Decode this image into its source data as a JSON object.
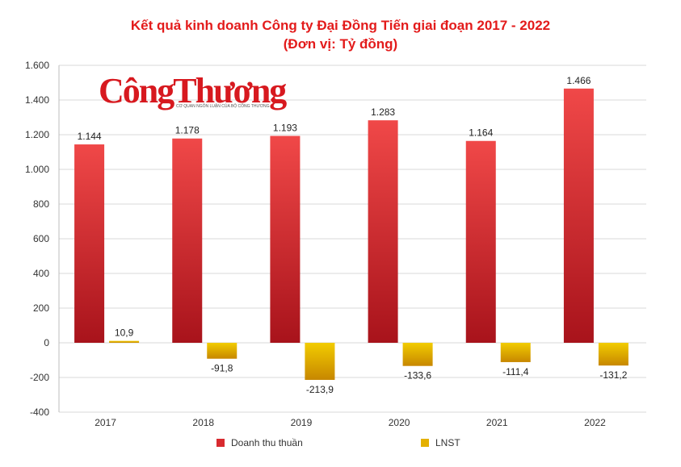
{
  "colors": {
    "revenue_top": "#f04848",
    "revenue_bottom": "#a8131b",
    "profit_top": "#f2cc00",
    "profit_bottom": "#c78700",
    "title": "#e31b1b",
    "grid": "#d8d8d8"
  },
  "watermark": {
    "logo_text": "CôngThương",
    "tagline": "CƠ QUAN NGÔN LUẬN CỦA BỘ CÔNG THƯƠNG"
  },
  "chart_data": {
    "type": "bar",
    "title": "Kết quả kinh doanh Công ty Đại Đồng Tiến giai đoạn 2017 - 2022",
    "subtitle": "(Đơn vị: Tỷ đồng)",
    "xlabel": "",
    "ylabel": "",
    "categories": [
      "2017",
      "2018",
      "2019",
      "2020",
      "2021",
      "2022"
    ],
    "series": [
      {
        "name": "Doanh thu thuần",
        "values": [
          1144,
          1178,
          1193,
          1283,
          1164,
          1466
        ],
        "labels": [
          "1.144",
          "1.178",
          "1.193",
          "1.283",
          "1.164",
          "1.466"
        ]
      },
      {
        "name": "LNST",
        "values": [
          10.9,
          -91.8,
          -213.9,
          -133.6,
          -111.4,
          -131.2
        ],
        "labels": [
          "10,9",
          "-91,8",
          "-213,9",
          "-133,6",
          "-111,4",
          "-131,2"
        ]
      }
    ],
    "ylim": [
      -400,
      1600
    ],
    "yticks": [
      -400,
      -200,
      0,
      200,
      400,
      600,
      800,
      1000,
      1200,
      1400,
      1600
    ],
    "ytick_labels": [
      "-400",
      "-200",
      "0",
      "200",
      "400",
      "600",
      "800",
      "1.000",
      "1.200",
      "1.400",
      "1.600"
    ],
    "grid": true,
    "legend_position": "bottom"
  }
}
